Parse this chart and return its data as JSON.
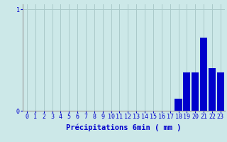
{
  "xlabel": "Précipitations 6min ( mm )",
  "categories": [
    0,
    1,
    2,
    3,
    4,
    5,
    6,
    7,
    8,
    9,
    10,
    11,
    12,
    13,
    14,
    15,
    16,
    17,
    18,
    19,
    20,
    21,
    22,
    23
  ],
  "values": [
    0,
    0,
    0,
    0,
    0,
    0,
    0,
    0,
    0,
    0,
    0,
    0,
    0,
    0,
    0,
    0,
    0,
    0,
    0.12,
    0.38,
    0.38,
    0.72,
    0.42,
    0.38
  ],
  "bar_color": "#0000cc",
  "bg_color": "#cce8e8",
  "grid_color": "#aacaca",
  "ylim": [
    0,
    1.05
  ],
  "xlim": [
    -0.5,
    23.5
  ],
  "yticks": [
    0,
    1
  ],
  "xticks": [
    0,
    1,
    2,
    3,
    4,
    5,
    6,
    7,
    8,
    9,
    10,
    11,
    12,
    13,
    14,
    15,
    16,
    17,
    18,
    19,
    20,
    21,
    22,
    23
  ],
  "tick_color": "#0000cc",
  "xlabel_color": "#0000cc",
  "xlabel_fontsize": 7.5,
  "tick_fontsize": 6
}
